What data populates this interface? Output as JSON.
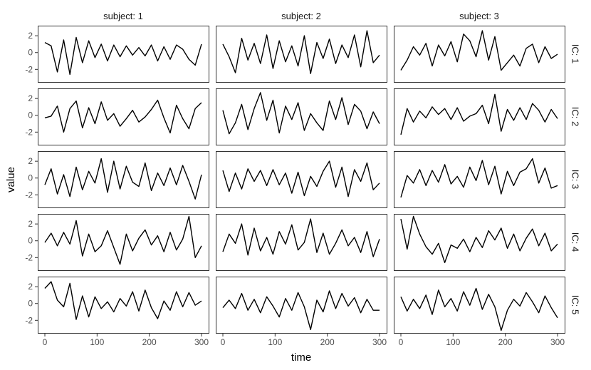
{
  "chart_data": {
    "type": "line",
    "facet_columns": [
      "subject: 1",
      "subject: 2",
      "subject: 3"
    ],
    "facet_rows": [
      "IC: 1",
      "IC: 2",
      "IC: 3",
      "IC: 4",
      "IC: 5"
    ],
    "xlabel": "time",
    "ylabel": "value",
    "xlim": [
      0,
      300
    ],
    "xticks": [
      "0",
      "100",
      "200",
      "300"
    ],
    "ylim": [
      -3.5,
      3.2
    ],
    "yticks": [
      "2",
      "0",
      "-2"
    ],
    "grid": false,
    "panels": [
      {
        "col": 0,
        "row": 0,
        "x": [
          0,
          12,
          24,
          36,
          48,
          60,
          72,
          84,
          96,
          108,
          120,
          132,
          144,
          156,
          168,
          180,
          192,
          204,
          216,
          228,
          240,
          252,
          264,
          276,
          288,
          300
        ],
        "y": [
          1.2,
          0.8,
          -2.3,
          1.5,
          -2.6,
          1.8,
          -1.2,
          1.4,
          -0.6,
          1.0,
          -1.0,
          0.9,
          -0.5,
          0.8,
          -0.3,
          0.6,
          -0.4,
          0.9,
          -1.0,
          0.7,
          -0.8,
          0.9,
          0.4,
          -0.8,
          -1.5,
          1.0
        ]
      },
      {
        "col": 1,
        "row": 0,
        "x": [
          0,
          12,
          24,
          36,
          48,
          60,
          72,
          84,
          96,
          108,
          120,
          132,
          144,
          156,
          168,
          180,
          192,
          204,
          216,
          228,
          240,
          252,
          264,
          276,
          288,
          300
        ],
        "y": [
          1.0,
          -0.5,
          -2.4,
          1.7,
          -0.9,
          1.1,
          -1.3,
          2.1,
          -1.9,
          1.4,
          -1.1,
          0.8,
          -1.6,
          2.0,
          -2.5,
          1.2,
          -0.7,
          1.6,
          -1.3,
          0.9,
          -0.6,
          2.1,
          -1.7,
          2.6,
          -1.2,
          -0.3
        ]
      },
      {
        "col": 2,
        "row": 0,
        "x": [
          0,
          12,
          24,
          36,
          48,
          60,
          72,
          84,
          96,
          108,
          120,
          132,
          144,
          156,
          168,
          180,
          192,
          204,
          216,
          228,
          240,
          252,
          264,
          276,
          288,
          300
        ],
        "y": [
          -2.1,
          -0.9,
          0.7,
          -0.3,
          1.1,
          -1.6,
          0.9,
          -0.4,
          1.3,
          -1.1,
          2.2,
          1.4,
          -0.5,
          2.6,
          -0.9,
          1.9,
          -2.1,
          -1.2,
          -0.3,
          -1.6,
          0.5,
          1.0,
          -1.2,
          0.7,
          -0.7,
          -0.2
        ]
      },
      {
        "col": 0,
        "row": 1,
        "x": [
          0,
          12,
          24,
          36,
          48,
          60,
          72,
          84,
          96,
          108,
          120,
          132,
          144,
          156,
          168,
          180,
          192,
          204,
          216,
          228,
          240,
          252,
          264,
          276,
          288,
          300
        ],
        "y": [
          -0.3,
          -0.1,
          1.1,
          -2.0,
          0.8,
          1.7,
          -1.5,
          0.9,
          -1.0,
          1.6,
          -0.6,
          0.2,
          -1.3,
          -0.4,
          0.6,
          -0.8,
          -0.2,
          0.7,
          1.8,
          -0.3,
          -2.1,
          1.2,
          -0.4,
          -1.6,
          0.8,
          1.5
        ]
      },
      {
        "col": 1,
        "row": 1,
        "x": [
          0,
          12,
          24,
          36,
          48,
          60,
          72,
          84,
          96,
          108,
          120,
          132,
          144,
          156,
          168,
          180,
          192,
          204,
          216,
          228,
          240,
          252,
          264,
          276,
          288,
          300
        ],
        "y": [
          0.6,
          -2.2,
          -0.9,
          1.3,
          -1.7,
          0.8,
          2.7,
          -0.6,
          1.8,
          -2.1,
          1.1,
          -0.5,
          1.5,
          -1.8,
          0.2,
          -0.9,
          -1.8,
          1.7,
          -0.5,
          2.1,
          -1.1,
          1.3,
          0.5,
          -1.6,
          0.4,
          -1.0
        ]
      },
      {
        "col": 2,
        "row": 1,
        "x": [
          0,
          12,
          24,
          36,
          48,
          60,
          72,
          84,
          96,
          108,
          120,
          132,
          144,
          156,
          168,
          180,
          192,
          204,
          216,
          228,
          240,
          252,
          264,
          276,
          288,
          300
        ],
        "y": [
          -2.3,
          0.8,
          -0.8,
          0.5,
          -0.3,
          1.0,
          0.1,
          0.8,
          -0.5,
          0.9,
          -0.7,
          -0.1,
          0.2,
          1.2,
          -1.0,
          2.5,
          -1.9,
          0.7,
          -0.6,
          0.9,
          -0.5,
          1.4,
          0.6,
          -0.8,
          0.7,
          -0.4
        ]
      },
      {
        "col": 0,
        "row": 2,
        "x": [
          0,
          12,
          24,
          36,
          48,
          60,
          72,
          84,
          96,
          108,
          120,
          132,
          144,
          156,
          168,
          180,
          192,
          204,
          216,
          228,
          240,
          252,
          264,
          276,
          288,
          300
        ],
        "y": [
          -0.8,
          1.1,
          -1.9,
          0.4,
          -2.2,
          1.3,
          -1.4,
          0.8,
          -0.6,
          2.3,
          -1.7,
          2.0,
          -1.3,
          1.4,
          -0.5,
          -1.0,
          1.8,
          -1.5,
          0.6,
          -0.9,
          1.2,
          -0.8,
          1.5,
          -0.4,
          -2.5,
          0.4
        ]
      },
      {
        "col": 1,
        "row": 2,
        "x": [
          0,
          12,
          24,
          36,
          48,
          60,
          72,
          84,
          96,
          108,
          120,
          132,
          144,
          156,
          168,
          180,
          192,
          204,
          216,
          228,
          240,
          252,
          264,
          276,
          288,
          300
        ],
        "y": [
          0.9,
          -1.6,
          0.6,
          -1.3,
          1.1,
          -0.4,
          0.9,
          -0.9,
          1.0,
          -0.8,
          0.6,
          -1.8,
          0.7,
          -2.1,
          0.2,
          -1.0,
          0.8,
          2.0,
          -1.1,
          1.3,
          -2.2,
          1.0,
          -0.4,
          1.8,
          -1.4,
          -0.6
        ]
      },
      {
        "col": 2,
        "row": 2,
        "x": [
          0,
          12,
          24,
          36,
          48,
          60,
          72,
          84,
          96,
          108,
          120,
          132,
          144,
          156,
          168,
          180,
          192,
          204,
          216,
          228,
          240,
          252,
          264,
          276,
          288,
          300
        ],
        "y": [
          -2.3,
          0.3,
          -0.6,
          1.0,
          -0.9,
          0.9,
          -0.5,
          1.6,
          -0.7,
          0.2,
          -1.1,
          1.3,
          -0.3,
          2.1,
          -0.8,
          1.4,
          -1.9,
          0.8,
          -0.9,
          0.7,
          1.1,
          2.3,
          -0.6,
          1.2,
          -1.2,
          -0.9
        ]
      },
      {
        "col": 0,
        "row": 3,
        "x": [
          0,
          12,
          24,
          36,
          48,
          60,
          72,
          84,
          96,
          108,
          120,
          132,
          144,
          156,
          168,
          180,
          192,
          204,
          216,
          228,
          240,
          252,
          264,
          276,
          288,
          300
        ],
        "y": [
          -0.2,
          0.9,
          -0.6,
          1.0,
          -0.4,
          2.4,
          -1.8,
          0.8,
          -1.3,
          -0.6,
          1.2,
          -0.8,
          -2.8,
          0.8,
          -1.2,
          0.3,
          1.3,
          -0.5,
          0.6,
          -1.3,
          1.0,
          -1.1,
          0.2,
          2.9,
          -2.0,
          -0.6
        ]
      },
      {
        "col": 1,
        "row": 3,
        "x": [
          0,
          12,
          24,
          36,
          48,
          60,
          72,
          84,
          96,
          108,
          120,
          132,
          144,
          156,
          168,
          180,
          192,
          204,
          216,
          228,
          240,
          252,
          264,
          276,
          288,
          300
        ],
        "y": [
          -1.3,
          0.8,
          -0.3,
          2.0,
          -1.7,
          1.5,
          -1.2,
          0.4,
          -1.6,
          1.1,
          -0.4,
          1.9,
          -1.1,
          -0.2,
          2.6,
          -1.4,
          0.9,
          -1.6,
          -0.3,
          1.3,
          -0.6,
          0.4,
          -1.4,
          1.1,
          -1.9,
          0.2
        ]
      },
      {
        "col": 2,
        "row": 3,
        "x": [
          0,
          12,
          24,
          36,
          48,
          60,
          72,
          84,
          96,
          108,
          120,
          132,
          144,
          156,
          168,
          180,
          192,
          204,
          216,
          228,
          240,
          252,
          264,
          276,
          288,
          300
        ],
        "y": [
          2.6,
          -1.0,
          2.9,
          0.8,
          -0.7,
          -1.6,
          -0.3,
          -2.6,
          -0.5,
          -0.9,
          0.2,
          -1.3,
          0.4,
          -0.8,
          1.2,
          0.1,
          1.5,
          -0.9,
          0.8,
          -1.2,
          0.3,
          1.4,
          -0.6,
          0.9,
          -1.2,
          -0.4
        ]
      },
      {
        "col": 0,
        "row": 4,
        "x": [
          0,
          12,
          24,
          36,
          48,
          60,
          72,
          84,
          96,
          108,
          120,
          132,
          144,
          156,
          168,
          180,
          192,
          204,
          216,
          228,
          240,
          252,
          264,
          276,
          288,
          300
        ],
        "y": [
          1.8,
          2.6,
          0.4,
          -0.4,
          2.4,
          -1.9,
          0.9,
          -1.6,
          0.8,
          -0.6,
          0.2,
          -1.0,
          0.6,
          -0.3,
          1.4,
          -0.9,
          1.6,
          -0.5,
          -1.8,
          0.3,
          -0.8,
          1.4,
          -0.4,
          1.3,
          -0.2,
          0.3
        ]
      },
      {
        "col": 1,
        "row": 4,
        "x": [
          0,
          12,
          24,
          36,
          48,
          60,
          72,
          84,
          96,
          108,
          120,
          132,
          144,
          156,
          168,
          180,
          192,
          204,
          216,
          228,
          240,
          252,
          264,
          276,
          288,
          300
        ],
        "y": [
          -0.5,
          0.4,
          -0.6,
          1.2,
          -0.8,
          0.5,
          -1.1,
          0.8,
          -0.3,
          -1.6,
          0.6,
          -0.8,
          1.3,
          -0.4,
          -3.1,
          0.4,
          -1.0,
          1.5,
          -0.6,
          1.2,
          -0.3,
          0.7,
          -1.1,
          0.5,
          -0.8,
          -0.8
        ]
      },
      {
        "col": 2,
        "row": 4,
        "x": [
          0,
          12,
          24,
          36,
          48,
          60,
          72,
          84,
          96,
          108,
          120,
          132,
          144,
          156,
          168,
          180,
          192,
          204,
          216,
          228,
          240,
          252,
          264,
          276,
          288,
          300
        ],
        "y": [
          0.8,
          -0.9,
          0.5,
          -0.6,
          1.0,
          -1.3,
          1.6,
          -0.4,
          0.6,
          -0.9,
          1.4,
          -0.2,
          1.8,
          -0.7,
          1.1,
          -0.4,
          -3.2,
          -0.8,
          0.5,
          -0.3,
          1.3,
          0.2,
          -1.1,
          0.9,
          -0.5,
          -1.7
        ]
      }
    ]
  }
}
